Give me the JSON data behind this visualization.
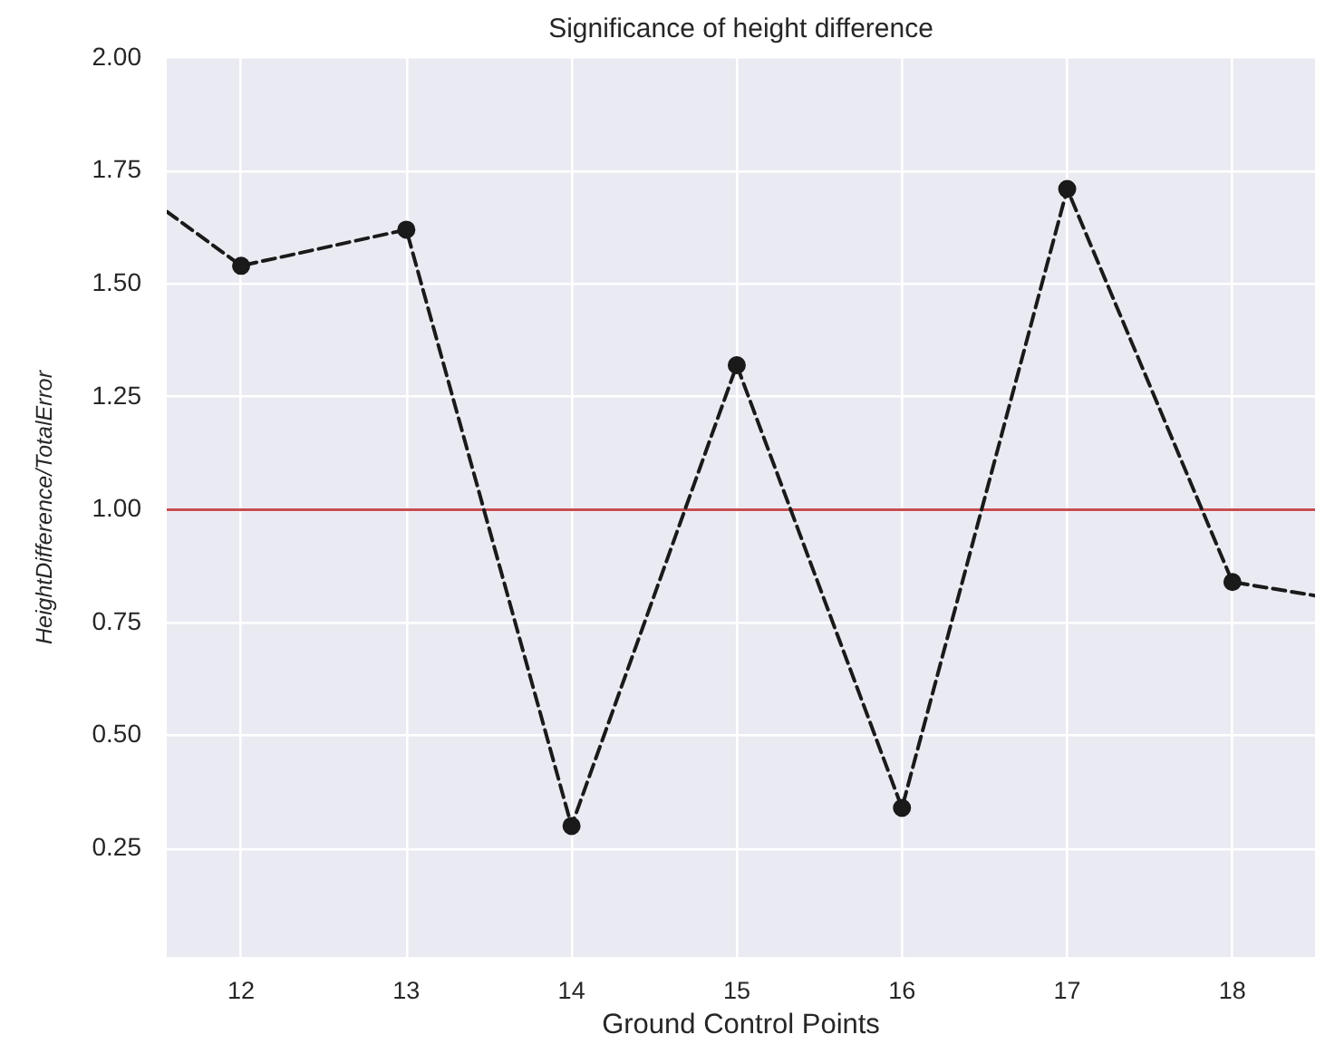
{
  "chart_data": {
    "type": "line",
    "title": "Significance of height difference",
    "xlabel": "Ground Control Points",
    "ylabel": "HeightDifference/TotalError",
    "series": [
      {
        "color": "#1a1a1a",
        "x": [
          11.55,
          12,
          13,
          14,
          15,
          16,
          17,
          18,
          18.5
        ],
        "values": [
          1.66,
          1.54,
          1.62,
          0.3,
          1.32,
          0.34,
          1.71,
          0.84,
          0.81
        ],
        "marker": "none"
      },
      {
        "type": "scatter",
        "color": "#1a1a1a",
        "x": [
          12,
          13,
          14,
          15,
          16,
          17,
          18
        ],
        "values": [
          1.54,
          1.62,
          0.3,
          1.32,
          0.34,
          1.71,
          0.84
        ],
        "marker": "circle"
      }
    ],
    "xlim": [
      11.55,
      18.5
    ],
    "xticks": [
      12,
      13,
      14,
      15,
      16,
      17,
      18
    ],
    "ylim": [
      0.01,
      2
    ],
    "yticks": [
      0.25,
      {
        "value": 0.5,
        "label": "0.50"
      },
      0.75,
      {
        "value": 1,
        "label": "1.00"
      },
      1.25,
      {
        "value": 1.5,
        "label": "1.50"
      },
      1.75,
      {
        "value": 2,
        "label": "2.00"
      }
    ],
    "grid": true,
    "line_style": "dashed",
    "ref_lines": [
      {
        "axis": "y",
        "value": 1,
        "color": "#c44e52"
      }
    ]
  }
}
